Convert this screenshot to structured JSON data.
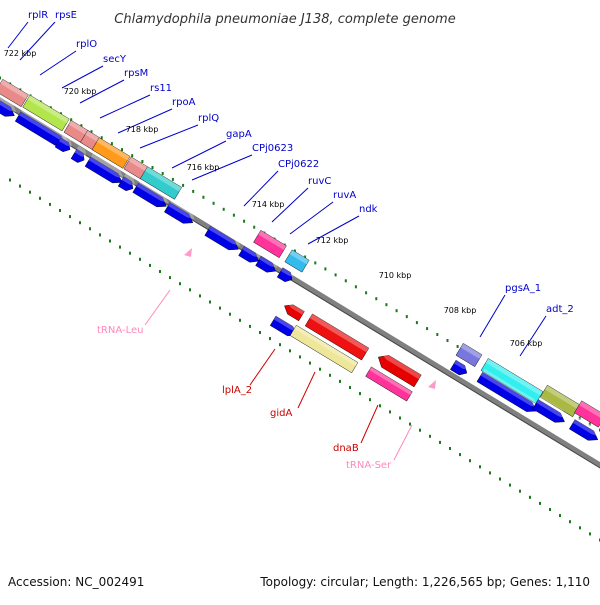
{
  "title": "Chlamydophila pneumoniae J138, complete genome",
  "footer": {
    "accession": "Accession: NC_002491",
    "summary": "Topology: circular; Length: 1,226,565 bp; Genes: 1,110"
  },
  "colors": {
    "forward_gene": "#0000e6",
    "reverse_gene": "#e60000",
    "trna": "#ff99cc",
    "backbone": "#808080",
    "tick": "#1a7a1a",
    "label_forward": "#0000cc",
    "label_reverse": "#cc0000",
    "label_trna": "#ff88bb"
  },
  "kbp_labels": [
    "722 kbp",
    "720 kbp",
    "718 kbp",
    "716 kbp",
    "714 kbp",
    "712 kbp",
    "710 kbp",
    "708 kbp",
    "706 kbp"
  ],
  "forward_labels": [
    "rplR",
    "rpsE",
    "rplO",
    "secY",
    "rpsM",
    "rs11",
    "rpoA",
    "rplQ",
    "gapA",
    "CPj0623",
    "CPj0622",
    "ruvC",
    "ruvA",
    "ndk",
    "pgsA_1",
    "adt_2"
  ],
  "reverse_labels": [
    "lplA_2",
    "gidA",
    "dnaB"
  ],
  "trna_labels": [
    "tRNA-Leu",
    "tRNA-Ser"
  ]
}
